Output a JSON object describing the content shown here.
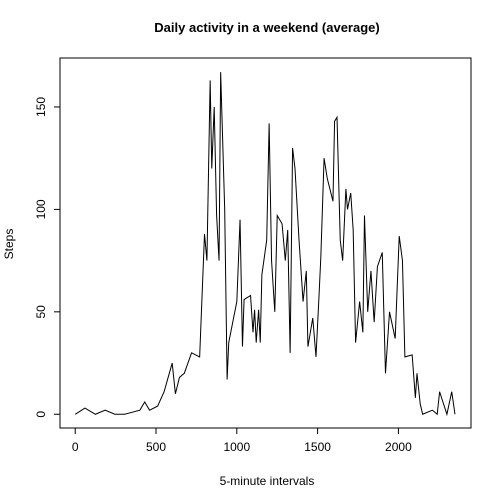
{
  "chart_data": {
    "type": "line",
    "title": "Daily activity in a weekend (average)",
    "x_label": "5-minute intervals",
    "y_label": "Steps",
    "x": [
      0,
      60,
      125,
      185,
      245,
      305,
      400,
      430,
      460,
      510,
      550,
      600,
      620,
      645,
      675,
      720,
      770,
      800,
      815,
      835,
      845,
      860,
      875,
      890,
      900,
      925,
      940,
      950,
      1000,
      1020,
      1035,
      1045,
      1085,
      1100,
      1110,
      1120,
      1135,
      1145,
      1155,
      1185,
      1200,
      1215,
      1235,
      1250,
      1280,
      1300,
      1315,
      1330,
      1345,
      1360,
      1385,
      1410,
      1430,
      1440,
      1470,
      1490,
      1510,
      1520,
      1540,
      1560,
      1595,
      1605,
      1620,
      1640,
      1655,
      1675,
      1685,
      1705,
      1720,
      1735,
      1760,
      1780,
      1790,
      1810,
      1830,
      1850,
      1870,
      1900,
      1920,
      1945,
      1980,
      2005,
      2025,
      2040,
      2085,
      2105,
      2115,
      2135,
      2150,
      2210,
      2240,
      2255,
      2300,
      2330,
      2350
    ],
    "series": [
      {
        "name": "Steps",
        "color": "#000000",
        "values": [
          0,
          3,
          0,
          2,
          0,
          0,
          2,
          6,
          2,
          4,
          11,
          25,
          10,
          18,
          20,
          30,
          28,
          88,
          75,
          163,
          120,
          150,
          97,
          75,
          167,
          100,
          17,
          35,
          55,
          95,
          33,
          56,
          58,
          40,
          51,
          35,
          51,
          35,
          68,
          85,
          142,
          75,
          50,
          97,
          93,
          75,
          90,
          30,
          130,
          120,
          85,
          55,
          70,
          33,
          47,
          28,
          60,
          77,
          125,
          115,
          104,
          143,
          145,
          85,
          75,
          110,
          100,
          108,
          90,
          35,
          55,
          40,
          97,
          50,
          70,
          45,
          72,
          79,
          20,
          50,
          37,
          87,
          75,
          28,
          29,
          8,
          20,
          5,
          0,
          2,
          0,
          11,
          0,
          11,
          0
        ]
      }
    ],
    "xlim": [
      -94.2,
      2449.2
    ],
    "xticks": [
      0,
      500,
      1000,
      1500,
      2000
    ],
    "ylim": [
      -6.7,
      173.9
    ],
    "yticks": [
      0,
      50,
      100,
      150
    ]
  }
}
